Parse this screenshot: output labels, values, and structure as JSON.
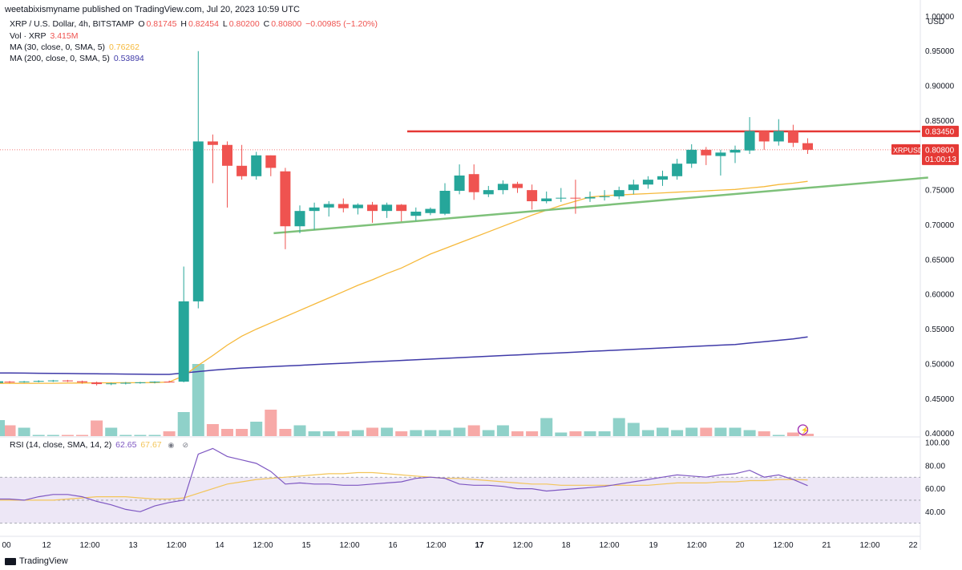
{
  "header": {
    "caption": "weetabixismyname published on TradingView.com, Jul 20, 2023 10:59 UTC"
  },
  "legend": {
    "symbol_text": "XRP / U.S. Dollar, 4h, BITSTAMP",
    "o_label": "O",
    "o_value": "0.81745",
    "h_label": "H",
    "h_value": "0.82454",
    "l_label": "L",
    "l_value": "0.80200",
    "c_label": "C",
    "c_value": "0.80800",
    "change": "−0.00985 (−1.20%)",
    "vol_label": "Vol · XRP",
    "vol_value": "3.415M",
    "ma30_label": "MA (30, close, 0, SMA, 5)",
    "ma30_value": "0.76262",
    "ma200_label": "MA (200, close, 0, SMA, 5)",
    "ma200_value": "0.53894",
    "rsi_label": "RSI (14, close, SMA, 14, 2)",
    "rsi_value": "62.65",
    "rsi_ma_value": "67.67"
  },
  "price_axis": {
    "currency": "USD",
    "ticks": [
      "1.00000",
      "0.95000",
      "0.90000",
      "0.85000",
      "0.75000",
      "0.70000",
      "0.65000",
      "0.60000",
      "0.55000",
      "0.50000",
      "0.45000",
      "0.40000"
    ],
    "resistance_label": "0.83450",
    "symbol_label": "XRPUSD",
    "last_price_label": "0.80800",
    "countdown_label": "01:00:13"
  },
  "rsi_axis": {
    "ticks": [
      "100.00",
      "80.00",
      "60.00",
      "40.00"
    ]
  },
  "time_axis": {
    "labels": [
      "00",
      "12",
      "12:00",
      "13",
      "12:00",
      "14",
      "12:00",
      "15",
      "12:00",
      "16",
      "12:00",
      "17",
      "12:00",
      "18",
      "12:00",
      "19",
      "12:00",
      "20",
      "12:00",
      "21",
      "12:00",
      "22"
    ]
  },
  "footer": {
    "logo_text": "TradingView"
  },
  "colors": {
    "up": "#26a69a",
    "down": "#ef5350",
    "up_vol": "#8fd1c9",
    "down_vol": "#f7a9a7",
    "ma30": "#f6b93b",
    "ma200": "#3f3aa8",
    "trendline": "#7ec17a",
    "resistance": "#e53935",
    "rsi_line": "#7e57c2",
    "rsi_ma": "#f3c55a",
    "rsi_band": "#ede7f6"
  },
  "icons": {
    "eye_icon": "eye-icon",
    "lightning_icon": "lightning-icon"
  },
  "chart_data": {
    "type": "candlestick",
    "symbol": "XRPUSD",
    "timeframe": "4h",
    "ylim": [
      0.395,
      1.005
    ],
    "candles": [
      {
        "o": 0.4745,
        "h": 0.4755,
        "l": 0.4725,
        "c": 0.474
      },
      {
        "o": 0.474,
        "h": 0.4755,
        "l": 0.473,
        "c": 0.4748
      },
      {
        "o": 0.4748,
        "h": 0.4765,
        "l": 0.4735,
        "c": 0.4755
      },
      {
        "o": 0.4755,
        "h": 0.477,
        "l": 0.474,
        "c": 0.4762
      },
      {
        "o": 0.4762,
        "h": 0.477,
        "l": 0.474,
        "c": 0.475
      },
      {
        "o": 0.475,
        "h": 0.476,
        "l": 0.4715,
        "c": 0.4735
      },
      {
        "o": 0.4735,
        "h": 0.4745,
        "l": 0.469,
        "c": 0.471
      },
      {
        "o": 0.471,
        "h": 0.473,
        "l": 0.4695,
        "c": 0.472
      },
      {
        "o": 0.472,
        "h": 0.474,
        "l": 0.4705,
        "c": 0.4728
      },
      {
        "o": 0.4728,
        "h": 0.4742,
        "l": 0.4715,
        "c": 0.4735
      },
      {
        "o": 0.4735,
        "h": 0.475,
        "l": 0.472,
        "c": 0.4745
      },
      {
        "o": 0.4745,
        "h": 0.476,
        "l": 0.473,
        "c": 0.474
      },
      {
        "o": 0.4745,
        "h": 0.64,
        "l": 0.4735,
        "c": 0.59
      },
      {
        "o": 0.59,
        "h": 0.95,
        "l": 0.58,
        "c": 0.82
      },
      {
        "o": 0.82,
        "h": 0.83,
        "l": 0.76,
        "c": 0.815
      },
      {
        "o": 0.815,
        "h": 0.82,
        "l": 0.725,
        "c": 0.785
      },
      {
        "o": 0.785,
        "h": 0.815,
        "l": 0.765,
        "c": 0.77
      },
      {
        "o": 0.77,
        "h": 0.805,
        "l": 0.765,
        "c": 0.8
      },
      {
        "o": 0.8,
        "h": 0.8,
        "l": 0.77,
        "c": 0.782
      },
      {
        "o": 0.777,
        "h": 0.782,
        "l": 0.665,
        "c": 0.698
      },
      {
        "o": 0.698,
        "h": 0.728,
        "l": 0.688,
        "c": 0.72
      },
      {
        "o": 0.72,
        "h": 0.732,
        "l": 0.693,
        "c": 0.725
      },
      {
        "o": 0.725,
        "h": 0.734,
        "l": 0.712,
        "c": 0.73
      },
      {
        "o": 0.73,
        "h": 0.738,
        "l": 0.718,
        "c": 0.724
      },
      {
        "o": 0.724,
        "h": 0.731,
        "l": 0.715,
        "c": 0.729
      },
      {
        "o": 0.729,
        "h": 0.733,
        "l": 0.703,
        "c": 0.72
      },
      {
        "o": 0.72,
        "h": 0.732,
        "l": 0.71,
        "c": 0.729
      },
      {
        "o": 0.729,
        "h": 0.73,
        "l": 0.705,
        "c": 0.72
      },
      {
        "o": 0.713,
        "h": 0.725,
        "l": 0.706,
        "c": 0.719
      },
      {
        "o": 0.717,
        "h": 0.725,
        "l": 0.714,
        "c": 0.723
      },
      {
        "o": 0.716,
        "h": 0.76,
        "l": 0.714,
        "c": 0.749
      },
      {
        "o": 0.749,
        "h": 0.787,
        "l": 0.744,
        "c": 0.771
      },
      {
        "o": 0.773,
        "h": 0.787,
        "l": 0.736,
        "c": 0.747
      },
      {
        "o": 0.744,
        "h": 0.756,
        "l": 0.74,
        "c": 0.75
      },
      {
        "o": 0.75,
        "h": 0.764,
        "l": 0.744,
        "c": 0.759
      },
      {
        "o": 0.759,
        "h": 0.762,
        "l": 0.746,
        "c": 0.753
      },
      {
        "o": 0.75,
        "h": 0.758,
        "l": 0.722,
        "c": 0.734
      },
      {
        "o": 0.734,
        "h": 0.748,
        "l": 0.731,
        "c": 0.738
      },
      {
        "o": 0.738,
        "h": 0.753,
        "l": 0.733,
        "c": 0.739
      },
      {
        "o": 0.739,
        "h": 0.765,
        "l": 0.716,
        "c": 0.738
      },
      {
        "o": 0.738,
        "h": 0.748,
        "l": 0.733,
        "c": 0.74
      },
      {
        "o": 0.74,
        "h": 0.75,
        "l": 0.735,
        "c": 0.741
      },
      {
        "o": 0.741,
        "h": 0.755,
        "l": 0.737,
        "c": 0.75
      },
      {
        "o": 0.75,
        "h": 0.765,
        "l": 0.744,
        "c": 0.758
      },
      {
        "o": 0.758,
        "h": 0.77,
        "l": 0.752,
        "c": 0.765
      },
      {
        "o": 0.765,
        "h": 0.778,
        "l": 0.756,
        "c": 0.77
      },
      {
        "o": 0.77,
        "h": 0.795,
        "l": 0.765,
        "c": 0.788
      },
      {
        "o": 0.788,
        "h": 0.816,
        "l": 0.782,
        "c": 0.808
      },
      {
        "o": 0.808,
        "h": 0.812,
        "l": 0.786,
        "c": 0.8
      },
      {
        "o": 0.799,
        "h": 0.808,
        "l": 0.771,
        "c": 0.804
      },
      {
        "o": 0.804,
        "h": 0.814,
        "l": 0.789,
        "c": 0.808
      },
      {
        "o": 0.807,
        "h": 0.855,
        "l": 0.802,
        "c": 0.835
      },
      {
        "o": 0.835,
        "h": 0.836,
        "l": 0.808,
        "c": 0.82
      },
      {
        "o": 0.82,
        "h": 0.852,
        "l": 0.814,
        "c": 0.835
      },
      {
        "o": 0.835,
        "h": 0.844,
        "l": 0.812,
        "c": 0.818
      },
      {
        "o": 0.8175,
        "h": 0.8245,
        "l": 0.802,
        "c": 0.808
      }
    ],
    "volume_rel": [
      0.45,
      0.35,
      0.05,
      0.05,
      0.05,
      0.05,
      0.65,
      0.35,
      0.05,
      0.05,
      0.05,
      0.2,
      1.0,
      3.0,
      0.5,
      0.3,
      0.3,
      0.6,
      1.1,
      0.3,
      0.45,
      0.2,
      0.2,
      0.2,
      0.25,
      0.35,
      0.35,
      0.2,
      0.25,
      0.25,
      0.25,
      0.35,
      0.45,
      0.25,
      0.45,
      0.2,
      0.2,
      0.75,
      0.15,
      0.2,
      0.2,
      0.2,
      0.75,
      0.55,
      0.25,
      0.35,
      0.25,
      0.35,
      0.35,
      0.35,
      0.35,
      0.25,
      0.2,
      0.05,
      0.15,
      0.1
    ],
    "ma30": [
      0.472,
      0.472,
      0.4722,
      0.4722,
      0.4725,
      0.4725,
      0.4728,
      0.4728,
      0.473,
      0.473,
      0.4732,
      0.474,
      0.483,
      0.498,
      0.512,
      0.527,
      0.54,
      0.55,
      0.559,
      0.568,
      0.577,
      0.586,
      0.595,
      0.604,
      0.613,
      0.621,
      0.63,
      0.638,
      0.648,
      0.658,
      0.666,
      0.674,
      0.682,
      0.69,
      0.698,
      0.706,
      0.714,
      0.721,
      0.728,
      0.734,
      0.74,
      0.742,
      0.743,
      0.744,
      0.745,
      0.746,
      0.747,
      0.748,
      0.749,
      0.75,
      0.751,
      0.753,
      0.755,
      0.758,
      0.76,
      0.7626
    ],
    "ma200": [
      0.487,
      0.4868,
      0.4866,
      0.4864,
      0.4862,
      0.486,
      0.4858,
      0.4856,
      0.4854,
      0.4852,
      0.485,
      0.485,
      0.487,
      0.489,
      0.491,
      0.4925,
      0.494,
      0.495,
      0.496,
      0.497,
      0.498,
      0.499,
      0.5,
      0.501,
      0.502,
      0.503,
      0.504,
      0.505,
      0.506,
      0.507,
      0.508,
      0.509,
      0.51,
      0.511,
      0.512,
      0.513,
      0.514,
      0.515,
      0.516,
      0.517,
      0.518,
      0.519,
      0.52,
      0.521,
      0.522,
      0.523,
      0.524,
      0.525,
      0.526,
      0.527,
      0.528,
      0.53,
      0.532,
      0.534,
      0.536,
      0.5389
    ],
    "rsi": [
      51,
      50,
      53,
      55,
      55,
      53,
      49,
      46,
      42,
      40,
      45,
      48,
      50,
      90,
      95,
      88,
      85,
      82,
      75,
      64,
      65,
      64,
      64,
      63,
      63,
      64,
      65,
      66,
      69,
      70,
      69,
      64,
      63,
      63,
      62,
      60,
      60,
      58,
      59,
      60,
      61,
      62,
      64,
      66,
      68,
      70,
      72,
      71,
      70,
      72,
      73,
      76,
      70,
      72,
      68,
      62.65
    ],
    "rsi_ma": [
      50,
      50,
      50,
      50,
      51,
      52,
      53,
      53,
      53,
      52,
      51,
      51,
      52,
      56,
      60,
      64,
      66,
      68,
      69,
      70,
      71,
      72,
      73,
      73,
      74,
      74,
      73,
      72,
      71,
      70,
      69,
      69,
      68,
      67,
      66,
      65,
      64,
      64,
      63,
      63,
      63,
      63,
      63,
      63,
      63,
      64,
      65,
      65,
      65,
      66,
      66,
      67,
      67,
      68,
      68,
      67.67
    ],
    "resistance_level": 0.8345,
    "trendline": {
      "from": {
        "index": 18.2,
        "price": 0.688
      },
      "to": {
        "index": 63.3,
        "price": 0.768
      }
    },
    "rsi_ylim": [
      20,
      105
    ],
    "rsi_band": [
      30,
      70
    ]
  }
}
